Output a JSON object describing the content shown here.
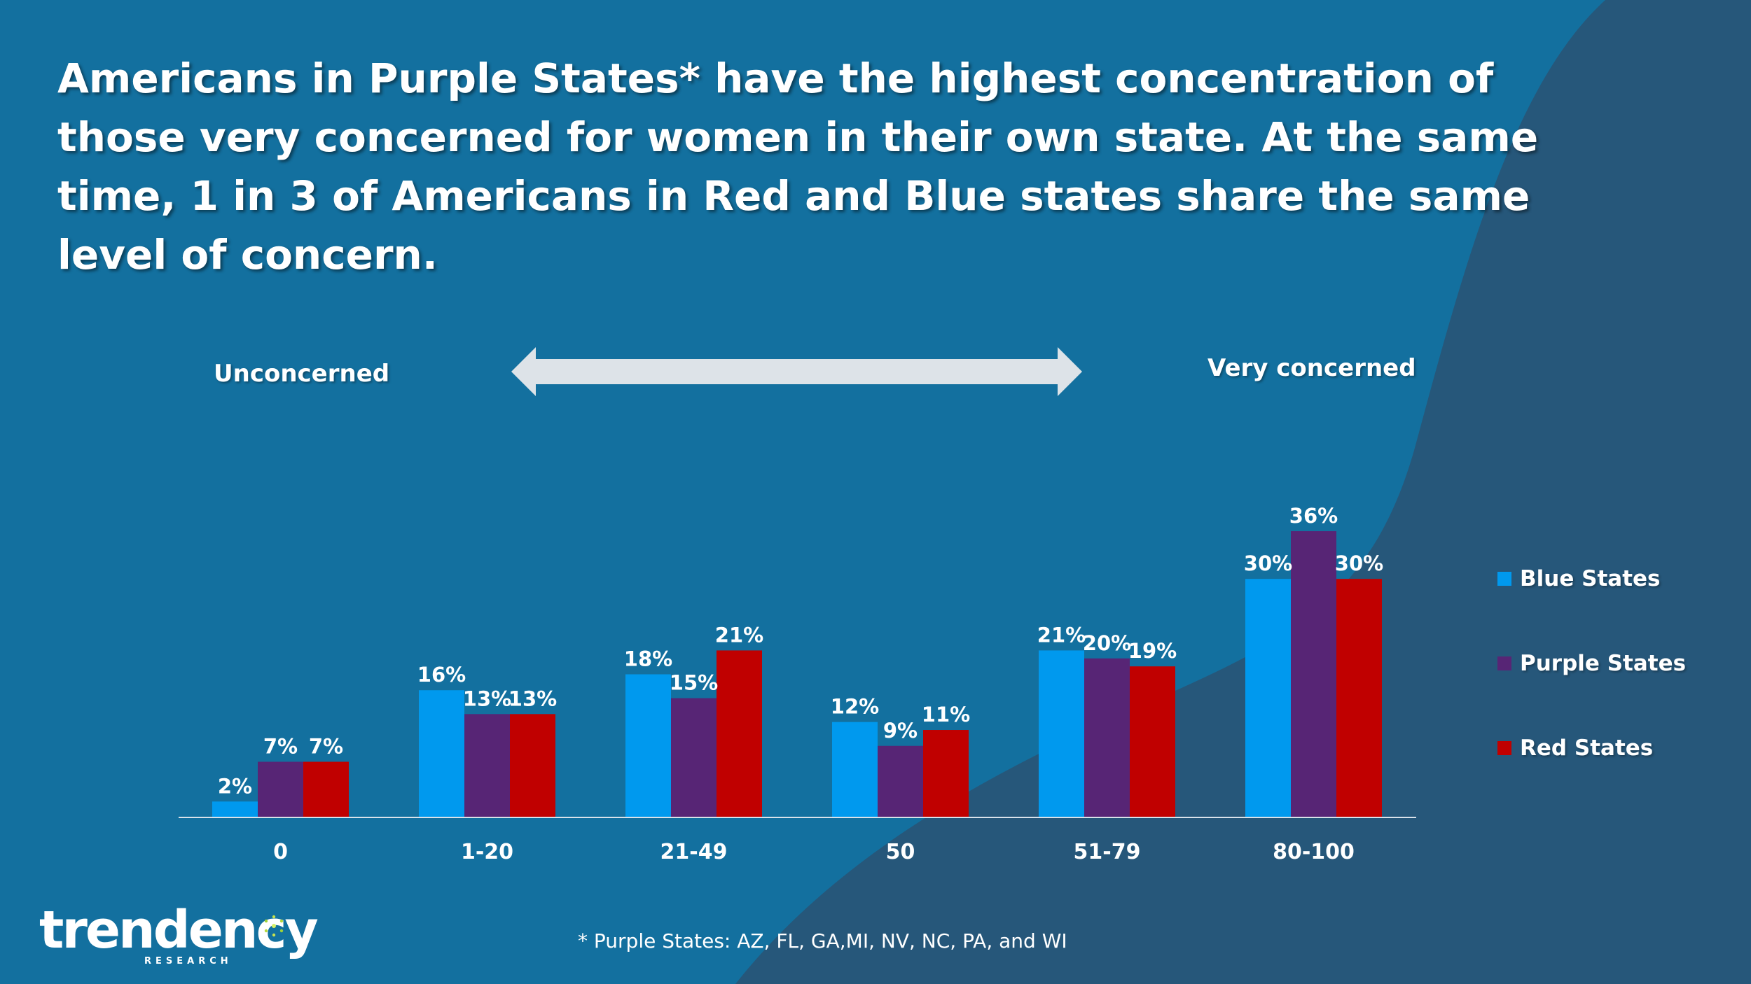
{
  "title": "Americans in Purple States* have the highest concentration of those very concerned for women in their own state. At the same time, 1 in 3 of Americans in Red and Blue states share the same level of concern.",
  "scale": {
    "left_label": "Unconcerned",
    "right_label": "Very concerned"
  },
  "footnote": "* Purple States: AZ, FL, GA,MI, NV, NC, PA, and WI",
  "logo": {
    "word": "trendency",
    "sub": "RESEARCH"
  },
  "colors": {
    "blue": "#0099ee",
    "purple": "#572575",
    "red": "#c00000",
    "background": "#13709f",
    "background_dark": "#26577a",
    "arrow": "#dde3e8"
  },
  "chart_data": {
    "type": "bar",
    "title": "",
    "xlabel": "",
    "ylabel": "",
    "ylim": [
      0,
      40
    ],
    "grid": false,
    "legend_position": "right",
    "categories": [
      "0",
      "1-20",
      "21-49",
      "50",
      "51-79",
      "80-100"
    ],
    "series": [
      {
        "name": "Blue States",
        "color": "#0099ee",
        "values": [
          2,
          16,
          18,
          12,
          21,
          30
        ],
        "labels": [
          "2%",
          "16%",
          "18%",
          "12%",
          "21%",
          "30%"
        ]
      },
      {
        "name": "Purple States",
        "color": "#572575",
        "values": [
          7,
          13,
          15,
          9,
          20,
          36
        ],
        "labels": [
          "7%",
          "13%",
          "15%",
          "9%",
          "20%",
          "36%"
        ]
      },
      {
        "name": "Red States",
        "color": "#c00000",
        "values": [
          7,
          13,
          21,
          11,
          19,
          30
        ],
        "labels": [
          "7%",
          "13%",
          "21%",
          "11%",
          "19%",
          "30%"
        ]
      }
    ]
  }
}
